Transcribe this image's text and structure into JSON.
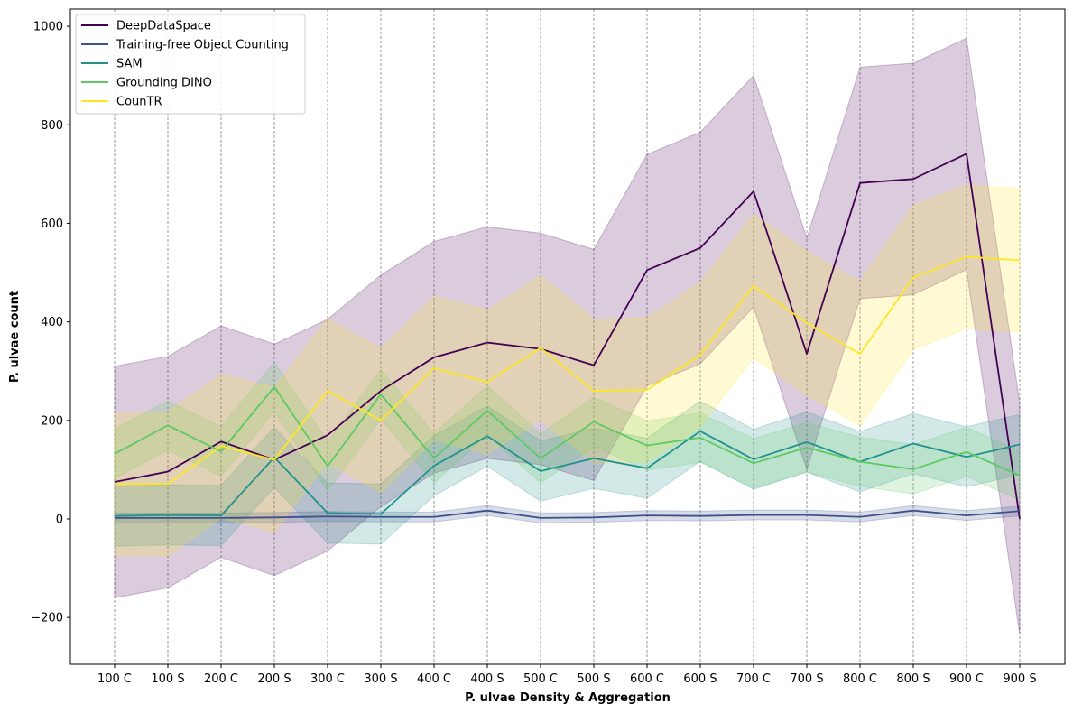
{
  "chart_data": {
    "type": "line",
    "xlabel": "P. ulvae Density & Aggregation",
    "ylabel": "P. ulvae count",
    "categories": [
      "100 C",
      "100 S",
      "200 C",
      "200 S",
      "300 C",
      "300 S",
      "400 C",
      "400 S",
      "500 C",
      "500 S",
      "600 C",
      "600 S",
      "700 C",
      "700 S",
      "800 C",
      "800 S",
      "900 C",
      "900 S"
    ],
    "ylim": [
      -295,
      1035
    ],
    "yticks": [
      -200,
      0,
      200,
      400,
      600,
      800,
      1000
    ],
    "yticklabels": [
      "−200",
      "0",
      "200",
      "400",
      "600",
      "800",
      "1000"
    ],
    "grid": "vertical dashed",
    "legend_position": "top-left",
    "series": [
      {
        "name": "DeepDataSpace",
        "color": "#440154",
        "values": [
          75,
          96,
          157,
          120,
          170,
          260,
          328,
          358,
          345,
          312,
          505,
          550,
          665,
          335,
          682,
          690,
          741,
          0
        ],
        "lower": [
          -160,
          -140,
          -78,
          -115,
          -65,
          25,
          93,
          123,
          110,
          78,
          270,
          315,
          430,
          100,
          447,
          455,
          506,
          -235
        ],
        "upper": [
          310,
          330,
          392,
          355,
          405,
          495,
          563,
          593,
          580,
          547,
          740,
          785,
          900,
          570,
          917,
          925,
          976,
          235
        ]
      },
      {
        "name": "Training-free Object Counting",
        "color": "#3b528b",
        "values": [
          2,
          2,
          2,
          3,
          5,
          4,
          4,
          17,
          2,
          3,
          7,
          6,
          8,
          8,
          4,
          17,
          7,
          16
        ],
        "lower": [
          -8,
          -8,
          -8,
          -7,
          -5,
          -6,
          -6,
          7,
          -8,
          -7,
          -3,
          -4,
          -2,
          -2,
          -6,
          7,
          -3,
          6
        ],
        "upper": [
          12,
          12,
          12,
          13,
          15,
          14,
          14,
          27,
          12,
          13,
          17,
          16,
          18,
          18,
          14,
          27,
          17,
          26
        ]
      },
      {
        "name": "SAM",
        "color": "#21918c",
        "values": [
          6,
          8,
          7,
          125,
          12,
          10,
          108,
          168,
          97,
          123,
          103,
          178,
          121,
          156,
          116,
          153,
          126,
          151
        ],
        "lower": [
          -55,
          -53,
          -54,
          64,
          -49,
          -51,
          47,
          107,
          36,
          62,
          42,
          117,
          60,
          95,
          55,
          92,
          65,
          90
        ],
        "upper": [
          67,
          69,
          68,
          186,
          73,
          71,
          169,
          229,
          158,
          184,
          164,
          239,
          182,
          217,
          177,
          214,
          187,
          212
        ]
      },
      {
        "name": "Grounding DINO",
        "color": "#5ec962",
        "values": [
          132,
          190,
          137,
          268,
          107,
          253,
          123,
          220,
          123,
          197,
          149,
          165,
          113,
          145,
          116,
          101,
          136,
          88
        ],
        "lower": [
          82,
          140,
          87,
          218,
          57,
          203,
          73,
          170,
          73,
          147,
          99,
          115,
          63,
          95,
          66,
          51,
          86,
          38
        ],
        "upper": [
          182,
          240,
          187,
          318,
          157,
          303,
          173,
          270,
          173,
          247,
          199,
          215,
          163,
          195,
          166,
          151,
          186,
          138
        ]
      },
      {
        "name": "CounTR",
        "color": "#fde725",
        "values": [
          71,
          71,
          148,
          120,
          260,
          200,
          306,
          278,
          347,
          260,
          262,
          333,
          473,
          398,
          335,
          490,
          532,
          525
        ],
        "lower": [
          -75,
          -75,
          2,
          -26,
          114,
          54,
          160,
          132,
          201,
          114,
          116,
          187,
          327,
          252,
          189,
          344,
          386,
          379
        ],
        "upper": [
          217,
          217,
          294,
          266,
          406,
          346,
          452,
          424,
          493,
          406,
          408,
          479,
          619,
          544,
          481,
          636,
          678,
          671
        ]
      }
    ]
  }
}
